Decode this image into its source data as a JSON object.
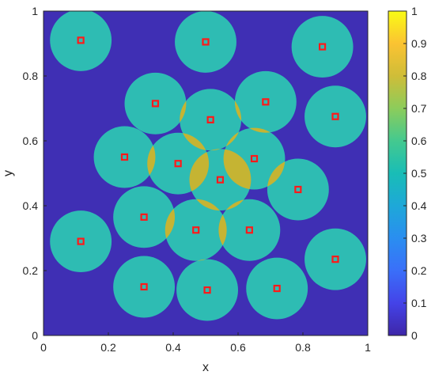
{
  "chart_data": {
    "type": "heatmap",
    "title": "",
    "xlabel": "x",
    "ylabel": "y",
    "xlim": [
      0,
      1
    ],
    "ylim": [
      0,
      1
    ],
    "xticks": [
      "0",
      "0.2",
      "0.4",
      "0.6",
      "0.8",
      "1"
    ],
    "yticks": [
      "0",
      "0.2",
      "0.4",
      "0.6",
      "0.8",
      "1"
    ],
    "grid": false,
    "sensor_radius": 0.095,
    "colors": {
      "background_value_0": "#3f2fb4",
      "coverage_single": "#2ebcb3",
      "coverage_overlap": "#c5b433",
      "sensor_marker": "#ff1a1a"
    },
    "cell_values": {
      "background": 0,
      "single_coverage": 0.5,
      "overlap": 0.75
    },
    "sensors": [
      {
        "x": 0.115,
        "y": 0.91
      },
      {
        "x": 0.5,
        "y": 0.905
      },
      {
        "x": 0.86,
        "y": 0.89
      },
      {
        "x": 0.345,
        "y": 0.715
      },
      {
        "x": 0.515,
        "y": 0.665
      },
      {
        "x": 0.685,
        "y": 0.72
      },
      {
        "x": 0.9,
        "y": 0.675
      },
      {
        "x": 0.25,
        "y": 0.55
      },
      {
        "x": 0.415,
        "y": 0.53
      },
      {
        "x": 0.65,
        "y": 0.545
      },
      {
        "x": 0.545,
        "y": 0.48
      },
      {
        "x": 0.785,
        "y": 0.45
      },
      {
        "x": 0.31,
        "y": 0.365
      },
      {
        "x": 0.47,
        "y": 0.325
      },
      {
        "x": 0.635,
        "y": 0.325
      },
      {
        "x": 0.115,
        "y": 0.29
      },
      {
        "x": 0.9,
        "y": 0.235
      },
      {
        "x": 0.31,
        "y": 0.15
      },
      {
        "x": 0.505,
        "y": 0.14
      },
      {
        "x": 0.72,
        "y": 0.145
      }
    ],
    "colorbar": {
      "range": [
        0,
        1
      ],
      "ticks": [
        "0",
        "0.1",
        "0.2",
        "0.3",
        "0.4",
        "0.5",
        "0.6",
        "0.7",
        "0.8",
        "0.9",
        "1"
      ],
      "colormap": "parula"
    }
  }
}
